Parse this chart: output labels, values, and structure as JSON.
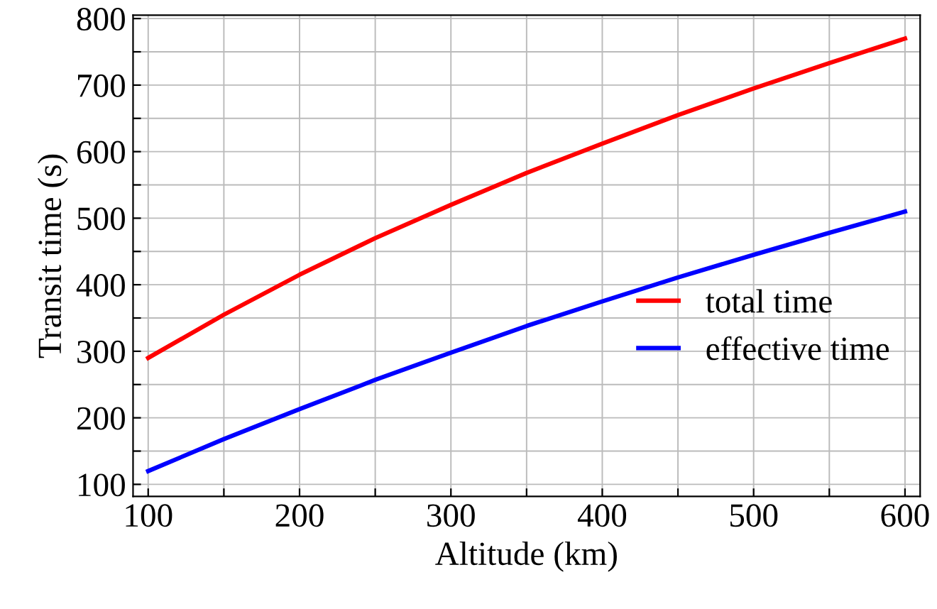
{
  "chart_data": {
    "type": "line",
    "xlabel": "Altitude (km)",
    "ylabel": "Transit time (s)",
    "x": [
      100,
      150,
      200,
      250,
      300,
      350,
      400,
      450,
      500,
      550,
      600
    ],
    "series": [
      {
        "name": "total time",
        "color": "#ff0000",
        "values": [
          290,
          355,
          415,
          470,
          520,
          568,
          612,
          655,
          695,
          733,
          770
        ]
      },
      {
        "name": "effective time",
        "color": "#0000ff",
        "values": [
          120,
          168,
          213,
          257,
          298,
          338,
          375,
          411,
          445,
          478,
          510
        ]
      }
    ],
    "xlim": [
      90,
      610
    ],
    "ylim": [
      82,
      805
    ],
    "xticks": [
      100,
      {
        "value": 150,
        "label": null
      },
      200,
      {
        "value": 250,
        "label": null
      },
      300,
      {
        "value": 350,
        "label": null
      },
      400,
      {
        "value": 450,
        "label": null
      },
      500,
      {
        "value": 550,
        "label": null
      },
      600
    ],
    "yticks": [
      100,
      {
        "value": 150,
        "label": null
      },
      200,
      {
        "value": 250,
        "label": null
      },
      300,
      {
        "value": 350,
        "label": null
      },
      400,
      {
        "value": 450,
        "label": null
      },
      500,
      {
        "value": 550,
        "label": null
      },
      600,
      {
        "value": 650,
        "label": null
      },
      700,
      {
        "value": 750,
        "label": null
      },
      800
    ],
    "grid": true,
    "legend": "right",
    "marker": "none",
    "line_style": "solid"
  }
}
